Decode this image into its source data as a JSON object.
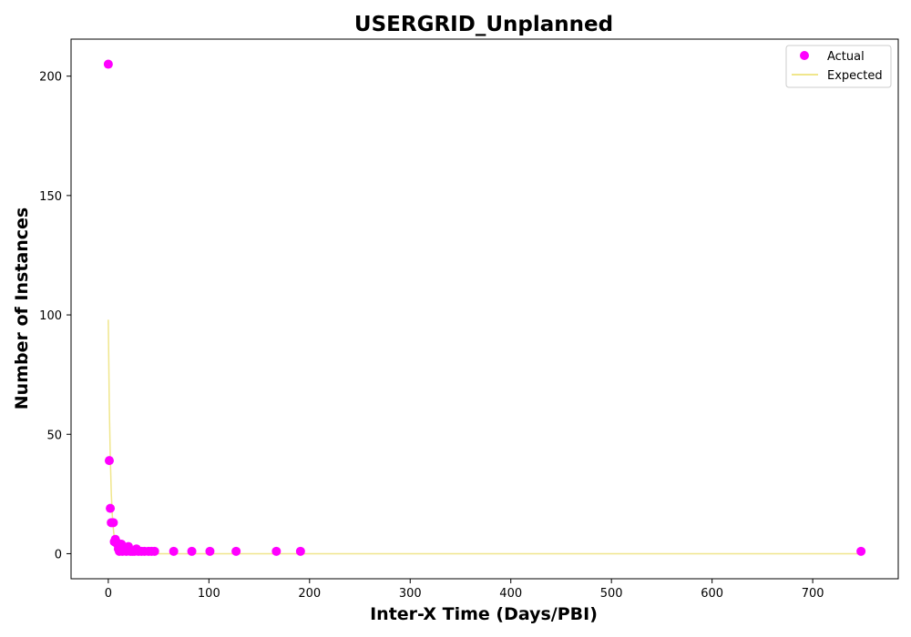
{
  "chart_data": {
    "type": "scatter",
    "title": "USERGRID_Unplanned",
    "xlabel": "Inter-X Time (Days/PBI)",
    "ylabel": "Number of Instances",
    "xlim": [
      -37,
      785
    ],
    "ylim": [
      -10.5,
      215.5
    ],
    "xticks": [
      0,
      100,
      200,
      300,
      400,
      500,
      600,
      700
    ],
    "yticks": [
      0,
      50,
      100,
      150,
      200
    ],
    "legend_position": "top-right",
    "grid": false,
    "series": [
      {
        "name": "Actual",
        "kind": "scatter",
        "color": "#ff00ff",
        "points": [
          [
            0,
            205
          ],
          [
            1,
            39
          ],
          [
            2,
            19
          ],
          [
            3,
            13
          ],
          [
            5,
            13
          ],
          [
            6,
            5
          ],
          [
            7,
            6
          ],
          [
            8,
            5
          ],
          [
            9,
            4
          ],
          [
            10,
            2
          ],
          [
            11,
            1
          ],
          [
            12,
            3
          ],
          [
            13,
            4
          ],
          [
            14,
            1
          ],
          [
            16,
            2
          ],
          [
            18,
            1
          ],
          [
            20,
            3
          ],
          [
            22,
            1
          ],
          [
            24,
            1
          ],
          [
            26,
            1
          ],
          [
            28,
            2
          ],
          [
            30,
            1
          ],
          [
            33,
            1
          ],
          [
            36,
            1
          ],
          [
            40,
            1
          ],
          [
            43,
            1
          ],
          [
            46,
            1
          ],
          [
            65,
            1
          ],
          [
            83,
            1
          ],
          [
            101,
            1
          ],
          [
            127,
            1
          ],
          [
            167,
            1
          ],
          [
            191,
            1
          ],
          [
            748,
            1
          ]
        ]
      },
      {
        "name": "Expected",
        "kind": "line",
        "color": "#f0e68c",
        "x": [
          0,
          1,
          2,
          3,
          4,
          5,
          6,
          7,
          8,
          9,
          10,
          12,
          14,
          16,
          18,
          20,
          25,
          30,
          40,
          60,
          100,
          200,
          400,
          600,
          748
        ],
        "y": [
          98,
          62,
          40,
          25,
          16,
          10.5,
          6.5,
          4.2,
          2.7,
          1.7,
          1.1,
          0.5,
          0.2,
          0.1,
          0.05,
          0.02,
          0,
          0,
          0,
          0,
          0,
          0,
          0,
          0,
          0
        ]
      }
    ]
  }
}
